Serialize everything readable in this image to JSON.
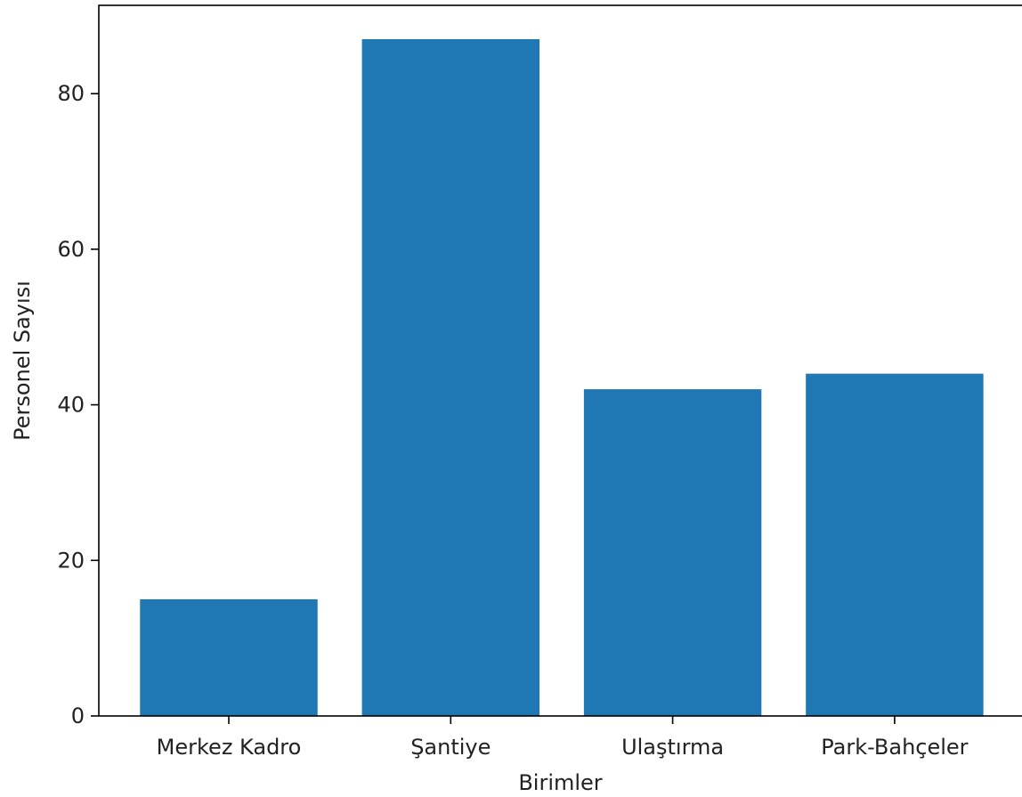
{
  "chart_data": {
    "type": "bar",
    "title": "",
    "xlabel": "Birimler",
    "ylabel": "Personel Sayısı",
    "categories": [
      "Merkez Kadro",
      "Şantiye",
      "Ulaştırma",
      "Park-Bahçeler"
    ],
    "values": [
      15,
      87,
      42,
      44
    ],
    "ylim": [
      0,
      91.35
    ],
    "yticks": [
      "0",
      "20",
      "40",
      "60",
      "80"
    ],
    "grid": false,
    "bar_color": "#1f77b4"
  }
}
